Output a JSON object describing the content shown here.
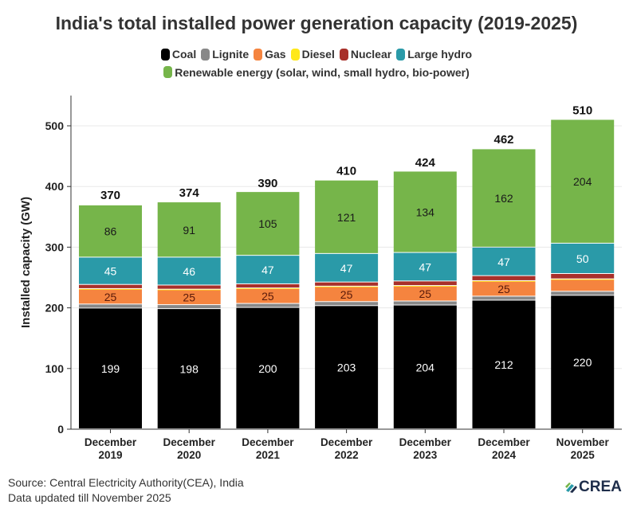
{
  "chart_data": {
    "type": "bar",
    "stacked": true,
    "title": "India's total installed power generation capacity (2019-2025)",
    "ylabel": "Installed capacity (GW)",
    "xlabel": "",
    "ylim": [
      0,
      540
    ],
    "yticks": [
      0,
      100,
      200,
      300,
      400,
      500
    ],
    "grid": true,
    "legend_position": "top",
    "categories": [
      [
        "December",
        "2019"
      ],
      [
        "December",
        "2020"
      ],
      [
        "December",
        "2021"
      ],
      [
        "December",
        "2022"
      ],
      [
        "December",
        "2023"
      ],
      [
        "December",
        "2024"
      ],
      [
        "November",
        "2025"
      ]
    ],
    "totals": [
      370,
      374,
      390,
      410,
      424,
      462,
      510
    ],
    "series": [
      {
        "name": "Coal",
        "color": "#000000",
        "label_color": "#ffffff",
        "values": [
          199,
          198,
          200,
          203,
          204,
          212,
          220
        ],
        "labels": [
          "199",
          "198",
          "200",
          "203",
          "204",
          "212",
          "220"
        ]
      },
      {
        "name": "Lignite",
        "color": "#888888",
        "values": [
          6.6,
          6.6,
          6.6,
          6.6,
          6.6,
          6.6,
          6.6
        ],
        "labels": []
      },
      {
        "name": "Gas",
        "color": "#f5843f",
        "label_color": "#5a1a0a",
        "values": [
          25,
          25,
          25,
          25,
          25,
          25,
          20
        ],
        "labels": [
          "25",
          "25",
          "25",
          "25",
          "25",
          "25",
          ""
        ]
      },
      {
        "name": "Diesel",
        "color": "#ffe81a",
        "values": [
          0.5,
          0.5,
          0.5,
          0.5,
          0.5,
          0.6,
          0.5
        ],
        "labels": []
      },
      {
        "name": "Nuclear",
        "color": "#a8302a",
        "values": [
          6.8,
          6.8,
          6.8,
          6.8,
          7.5,
          8.2,
          8.8
        ],
        "labels": []
      },
      {
        "name": "Large hydro",
        "color": "#2a9aa8",
        "label_color": "#ffffff",
        "values": [
          45,
          46,
          47,
          47,
          47,
          47,
          50
        ],
        "labels": [
          "45",
          "46",
          "47",
          "47",
          "47",
          "47",
          "50"
        ]
      },
      {
        "name": "Renewable energy (solar, wind, small hydro, bio-power)",
        "color": "#76b54a",
        "label_color": "#1a1a1a",
        "values": [
          86,
          91,
          105,
          121,
          134,
          162,
          204
        ],
        "labels": [
          "86",
          "91",
          "105",
          "121",
          "134",
          "162",
          "204"
        ]
      }
    ]
  },
  "source": "Source: Central Electricity Authority(CEA), India",
  "updated": "Data updated till November 2025",
  "logo_text": "CREA"
}
